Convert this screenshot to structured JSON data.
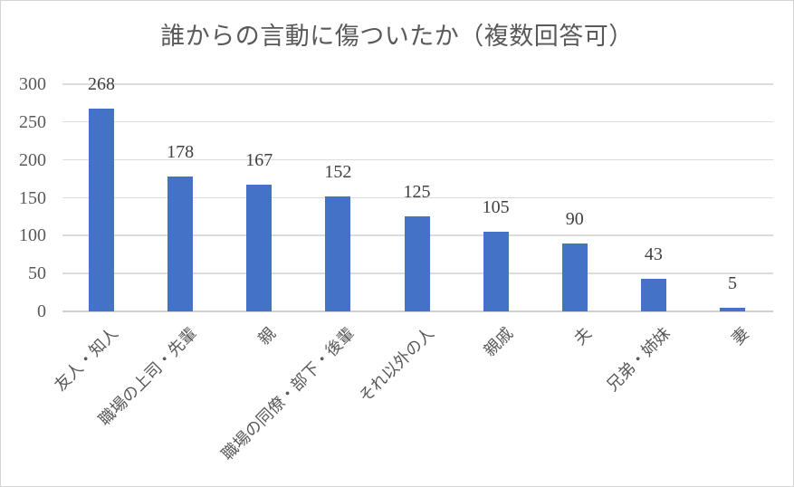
{
  "chart_data": {
    "type": "bar",
    "title": "誰からの言動に傷ついたか（複数回答可）",
    "categories": [
      "友人・知人",
      "職場の上司・先輩",
      "親",
      "職場の同僚・部下・後輩",
      "それ以外の人",
      "親戚",
      "夫",
      "兄弟・姉妹",
      "妻"
    ],
    "values": [
      268,
      178,
      167,
      152,
      125,
      105,
      90,
      43,
      5
    ],
    "data_labels_shown": true,
    "xlabel": "",
    "ylabel": "",
    "ylim": [
      0,
      300
    ],
    "yticks": [
      0,
      50,
      100,
      150,
      200,
      250,
      300
    ],
    "grid": true,
    "legend": false,
    "colors": {
      "bar": "#4472c4",
      "gridline": "#dcdcdc",
      "axis_line": "#d0d0d0",
      "title_text": "#595959",
      "tick_text": "#595959",
      "data_label_text": "#404040"
    }
  }
}
